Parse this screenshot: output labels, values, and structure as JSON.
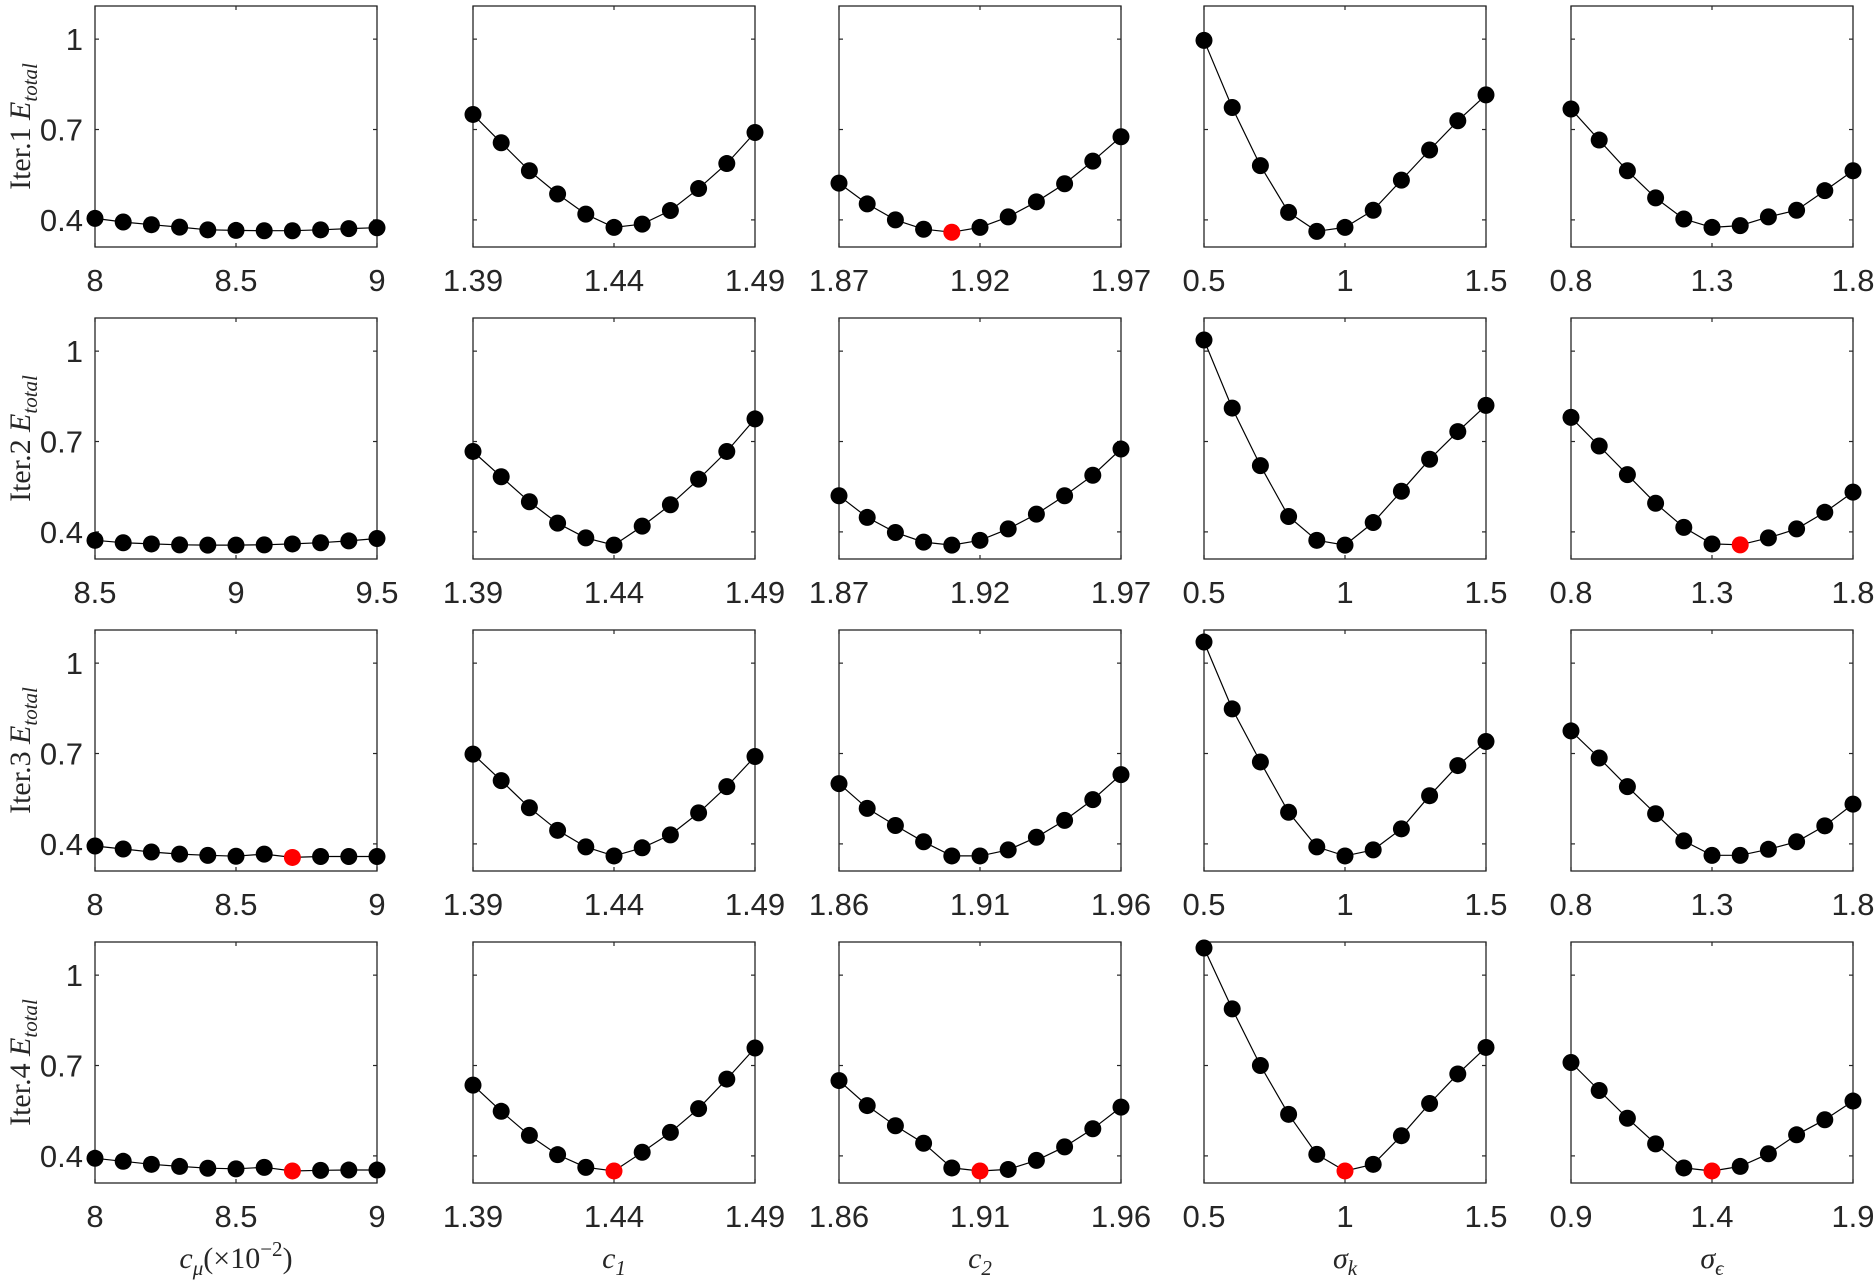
{
  "colors": {
    "point": "#000000",
    "highlight": "#ff0000",
    "line": "#000000",
    "axis": "#262626"
  },
  "chart_data": {
    "type": "line",
    "layout": "4 rows x 5 columns of small-multiple line plots with markers",
    "row_labels": [
      {
        "prefix": "Iter.1 ",
        "symbol": "E",
        "subscript": "total"
      },
      {
        "prefix": "Iter.2 ",
        "symbol": "E",
        "subscript": "total"
      },
      {
        "prefix": "Iter.3 ",
        "symbol": "E",
        "subscript": "total"
      },
      {
        "prefix": "Iter.4 ",
        "symbol": "E",
        "subscript": "total"
      }
    ],
    "col_labels": [
      {
        "base": "c",
        "subscript": "μ",
        "suffix": "(×10",
        "sup": "−2",
        "suffix2": ")"
      },
      {
        "base": "c",
        "subscript": "1"
      },
      {
        "base": "c",
        "subscript": "2"
      },
      {
        "base": "σ",
        "subscript": "k"
      },
      {
        "base": "σ",
        "subscript": "ϵ"
      }
    ],
    "ylim": [
      0.31,
      1.11
    ],
    "yticks": [
      0.4,
      0.7,
      1
    ],
    "ytick_labels": [
      "0.4",
      "0.7",
      "1"
    ],
    "grid": false,
    "legend": "none",
    "panels": [
      [
        {
          "xlim": [
            8,
            9
          ],
          "xticks": [
            8,
            8.5,
            9
          ],
          "xtick_labels": [
            "8",
            "8.5",
            "9"
          ],
          "x": [
            8,
            8.1,
            8.2,
            8.3,
            8.4,
            8.5,
            8.6,
            8.7,
            8.8,
            8.9,
            9
          ],
          "y": [
            0.405,
            0.393,
            0.384,
            0.376,
            0.367,
            0.365,
            0.364,
            0.364,
            0.367,
            0.371,
            0.374
          ],
          "highlight": -1
        },
        {
          "xlim": [
            1.39,
            1.49
          ],
          "xticks": [
            1.39,
            1.44,
            1.49
          ],
          "xtick_labels": [
            "1.39",
            "1.44",
            "1.49"
          ],
          "x": [
            1.39,
            1.4,
            1.41,
            1.42,
            1.43,
            1.44,
            1.45,
            1.46,
            1.47,
            1.48,
            1.49
          ],
          "y": [
            0.75,
            0.656,
            0.563,
            0.486,
            0.419,
            0.375,
            0.386,
            0.431,
            0.504,
            0.587,
            0.69
          ],
          "highlight": -1
        },
        {
          "xlim": [
            1.87,
            1.97
          ],
          "xticks": [
            1.87,
            1.92,
            1.97
          ],
          "xtick_labels": [
            "1.87",
            "1.92",
            "1.97"
          ],
          "x": [
            1.87,
            1.88,
            1.89,
            1.9,
            1.91,
            1.92,
            1.93,
            1.94,
            1.95,
            1.96,
            1.97
          ],
          "y": [
            0.522,
            0.453,
            0.4,
            0.369,
            0.359,
            0.375,
            0.41,
            0.46,
            0.52,
            0.595,
            0.676
          ],
          "highlight": 4
        },
        {
          "xlim": [
            0.5,
            1.5
          ],
          "xticks": [
            0.5,
            1,
            1.5
          ],
          "xtick_labels": [
            "0.5",
            "1",
            "1.5"
          ],
          "x": [
            0.5,
            0.6,
            0.7,
            0.8,
            0.9,
            1.0,
            1.1,
            1.2,
            1.3,
            1.4,
            1.5
          ],
          "y": [
            0.996,
            0.773,
            0.58,
            0.425,
            0.362,
            0.375,
            0.432,
            0.532,
            0.632,
            0.729,
            0.815
          ],
          "highlight": -1
        },
        {
          "xlim": [
            0.8,
            1.8
          ],
          "xticks": [
            0.8,
            1.3,
            1.8
          ],
          "xtick_labels": [
            "0.8",
            "1.3",
            "1.8"
          ],
          "x": [
            0.8,
            0.9,
            1.0,
            1.1,
            1.2,
            1.3,
            1.4,
            1.5,
            1.6,
            1.7,
            1.8
          ],
          "y": [
            0.768,
            0.665,
            0.563,
            0.473,
            0.403,
            0.375,
            0.381,
            0.41,
            0.432,
            0.497,
            0.563
          ],
          "highlight": -1
        }
      ],
      [
        {
          "xlim": [
            8.5,
            9.5
          ],
          "xticks": [
            8.5,
            9,
            9.5
          ],
          "xtick_labels": [
            "8.5",
            "9",
            "9.5"
          ],
          "x": [
            8.5,
            8.6,
            8.7,
            8.8,
            8.9,
            9.0,
            9.1,
            9.2,
            9.3,
            9.4,
            9.5
          ],
          "y": [
            0.372,
            0.364,
            0.36,
            0.357,
            0.356,
            0.356,
            0.357,
            0.36,
            0.364,
            0.37,
            0.378
          ],
          "highlight": -1
        },
        {
          "xlim": [
            1.39,
            1.49
          ],
          "xticks": [
            1.39,
            1.44,
            1.49
          ],
          "xtick_labels": [
            "1.39",
            "1.44",
            "1.49"
          ],
          "x": [
            1.39,
            1.4,
            1.41,
            1.42,
            1.43,
            1.44,
            1.45,
            1.46,
            1.47,
            1.48,
            1.49
          ],
          "y": [
            0.667,
            0.583,
            0.5,
            0.429,
            0.38,
            0.356,
            0.419,
            0.49,
            0.575,
            0.667,
            0.775
          ],
          "highlight": -1
        },
        {
          "xlim": [
            1.87,
            1.97
          ],
          "xticks": [
            1.87,
            1.92,
            1.97
          ],
          "xtick_labels": [
            "1.87",
            "1.92",
            "1.97"
          ],
          "x": [
            1.87,
            1.88,
            1.89,
            1.9,
            1.91,
            1.92,
            1.93,
            1.94,
            1.95,
            1.96,
            1.97
          ],
          "y": [
            0.52,
            0.448,
            0.398,
            0.366,
            0.356,
            0.372,
            0.41,
            0.459,
            0.52,
            0.588,
            0.675
          ],
          "highlight": -1
        },
        {
          "xlim": [
            0.5,
            1.5
          ],
          "xticks": [
            0.5,
            1,
            1.5
          ],
          "xtick_labels": [
            "0.5",
            "1",
            "1.5"
          ],
          "x": [
            0.5,
            0.6,
            0.7,
            0.8,
            0.9,
            1.0,
            1.1,
            1.2,
            1.3,
            1.4,
            1.5
          ],
          "y": [
            1.037,
            0.811,
            0.62,
            0.451,
            0.372,
            0.356,
            0.431,
            0.535,
            0.641,
            0.733,
            0.82
          ],
          "highlight": -1
        },
        {
          "xlim": [
            0.8,
            1.8
          ],
          "xticks": [
            0.8,
            1.3,
            1.8
          ],
          "xtick_labels": [
            "0.8",
            "1.3",
            "1.8"
          ],
          "x": [
            0.8,
            0.9,
            1.0,
            1.1,
            1.2,
            1.3,
            1.4,
            1.5,
            1.6,
            1.7,
            1.8
          ],
          "y": [
            0.78,
            0.685,
            0.59,
            0.495,
            0.415,
            0.36,
            0.357,
            0.38,
            0.41,
            0.465,
            0.532
          ],
          "highlight": 6
        }
      ],
      [
        {
          "xlim": [
            8,
            9
          ],
          "xticks": [
            8,
            8.5,
            9
          ],
          "xtick_labels": [
            "8",
            "8.5",
            "9"
          ],
          "x": [
            8,
            8.1,
            8.2,
            8.3,
            8.4,
            8.5,
            8.6,
            8.7,
            8.8,
            8.9,
            9
          ],
          "y": [
            0.393,
            0.383,
            0.373,
            0.366,
            0.362,
            0.359,
            0.366,
            0.355,
            0.358,
            0.358,
            0.358
          ],
          "highlight": 7
        },
        {
          "xlim": [
            1.39,
            1.49
          ],
          "xticks": [
            1.39,
            1.44,
            1.49
          ],
          "xtick_labels": [
            "1.39",
            "1.44",
            "1.49"
          ],
          "x": [
            1.39,
            1.4,
            1.41,
            1.42,
            1.43,
            1.44,
            1.45,
            1.46,
            1.47,
            1.48,
            1.49
          ],
          "y": [
            0.698,
            0.61,
            0.52,
            0.445,
            0.39,
            0.36,
            0.387,
            0.43,
            0.503,
            0.59,
            0.69
          ],
          "highlight": -1
        },
        {
          "xlim": [
            1.86,
            1.96
          ],
          "xticks": [
            1.86,
            1.91,
            1.96
          ],
          "xtick_labels": [
            "1.86",
            "1.91",
            "1.96"
          ],
          "x": [
            1.86,
            1.87,
            1.88,
            1.89,
            1.9,
            1.91,
            1.92,
            1.93,
            1.94,
            1.95,
            1.96
          ],
          "y": [
            0.6,
            0.518,
            0.461,
            0.407,
            0.36,
            0.36,
            0.38,
            0.422,
            0.478,
            0.547,
            0.63
          ],
          "highlight": -1
        },
        {
          "xlim": [
            0.5,
            1.5
          ],
          "xticks": [
            0.5,
            1,
            1.5
          ],
          "xtick_labels": [
            "0.5",
            "1",
            "1.5"
          ],
          "x": [
            0.5,
            0.6,
            0.7,
            0.8,
            0.9,
            1.0,
            1.1,
            1.2,
            1.3,
            1.4,
            1.5
          ],
          "y": [
            1.07,
            0.848,
            0.672,
            0.505,
            0.39,
            0.36,
            0.38,
            0.45,
            0.56,
            0.66,
            0.74
          ],
          "highlight": -1
        },
        {
          "xlim": [
            0.8,
            1.8
          ],
          "xticks": [
            0.8,
            1.3,
            1.8
          ],
          "xtick_labels": [
            "0.8",
            "1.3",
            "1.8"
          ],
          "x": [
            0.8,
            0.9,
            1.0,
            1.1,
            1.2,
            1.3,
            1.4,
            1.5,
            1.6,
            1.7,
            1.8
          ],
          "y": [
            0.775,
            0.685,
            0.59,
            0.5,
            0.41,
            0.362,
            0.362,
            0.382,
            0.407,
            0.46,
            0.532
          ],
          "highlight": -1
        }
      ],
      [
        {
          "xlim": [
            8,
            9
          ],
          "xticks": [
            8,
            8.5,
            9
          ],
          "xtick_labels": [
            "8",
            "8.5",
            "9"
          ],
          "x": [
            8,
            8.1,
            8.2,
            8.3,
            8.4,
            8.5,
            8.6,
            8.7,
            8.8,
            8.9,
            9
          ],
          "y": [
            0.392,
            0.382,
            0.372,
            0.365,
            0.359,
            0.357,
            0.362,
            0.35,
            0.352,
            0.353,
            0.353
          ],
          "highlight": 7
        },
        {
          "xlim": [
            1.39,
            1.49
          ],
          "xticks": [
            1.39,
            1.44,
            1.49
          ],
          "xtick_labels": [
            "1.39",
            "1.44",
            "1.49"
          ],
          "x": [
            1.39,
            1.4,
            1.41,
            1.42,
            1.43,
            1.44,
            1.45,
            1.46,
            1.47,
            1.48,
            1.49
          ],
          "y": [
            0.635,
            0.548,
            0.468,
            0.404,
            0.362,
            0.35,
            0.412,
            0.478,
            0.557,
            0.655,
            0.758
          ],
          "highlight": 5
        },
        {
          "xlim": [
            1.86,
            1.96
          ],
          "xticks": [
            1.86,
            1.91,
            1.96
          ],
          "xtick_labels": [
            "1.86",
            "1.91",
            "1.96"
          ],
          "x": [
            1.86,
            1.87,
            1.88,
            1.89,
            1.9,
            1.91,
            1.92,
            1.93,
            1.94,
            1.95,
            1.96
          ],
          "y": [
            0.65,
            0.567,
            0.5,
            0.442,
            0.36,
            0.35,
            0.355,
            0.385,
            0.43,
            0.49,
            0.562
          ],
          "highlight": 5
        },
        {
          "xlim": [
            0.5,
            1.5
          ],
          "xticks": [
            0.5,
            1,
            1.5
          ],
          "xtick_labels": [
            "0.5",
            "1",
            "1.5"
          ],
          "x": [
            0.5,
            0.6,
            0.7,
            0.8,
            0.9,
            1.0,
            1.1,
            1.2,
            1.3,
            1.4,
            1.5
          ],
          "y": [
            1.09,
            0.888,
            0.7,
            0.538,
            0.405,
            0.35,
            0.372,
            0.467,
            0.574,
            0.672,
            0.76
          ],
          "highlight": 5
        },
        {
          "xlim": [
            0.9,
            1.9
          ],
          "xticks": [
            0.9,
            1.4,
            1.9
          ],
          "xtick_labels": [
            "0.9",
            "1.4",
            "1.9"
          ],
          "x": [
            0.9,
            1.0,
            1.1,
            1.2,
            1.3,
            1.4,
            1.5,
            1.6,
            1.7,
            1.8,
            1.9
          ],
          "y": [
            0.71,
            0.617,
            0.525,
            0.44,
            0.36,
            0.35,
            0.365,
            0.407,
            0.47,
            0.52,
            0.582
          ],
          "highlight": 5
        }
      ]
    ]
  }
}
